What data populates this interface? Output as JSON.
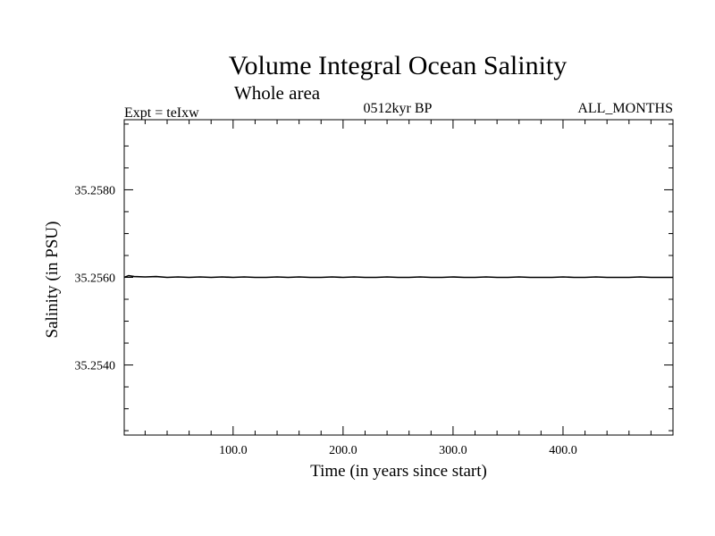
{
  "chart_data": {
    "type": "line",
    "title": "Volume Integral Ocean Salinity",
    "subtitle": "Whole area",
    "left_label": "Expt = teIxw",
    "center_label": "0512kyr BP",
    "right_label": "ALL_MONTHS",
    "xlabel": "Time (in years since start)",
    "ylabel": "Salinity (in PSU)",
    "xlim": [
      1,
      500
    ],
    "ylim": [
      35.2524,
      35.2596
    ],
    "xticks": [
      100,
      200,
      300,
      400
    ],
    "xtick_labels": [
      "100.0",
      "200.0",
      "300.0",
      "400.0"
    ],
    "yticks": [
      35.254,
      35.256,
      35.258
    ],
    "ytick_labels": [
      "35.2540",
      "35.2560",
      "35.2580"
    ],
    "grid": false,
    "series": [
      {
        "x": [
          1,
          5,
          10,
          20,
          30,
          40,
          50,
          60,
          70,
          80,
          90,
          100,
          110,
          120,
          130,
          140,
          150,
          160,
          170,
          180,
          190,
          200,
          210,
          220,
          230,
          240,
          250,
          260,
          270,
          280,
          290,
          300,
          310,
          320,
          330,
          340,
          350,
          360,
          370,
          380,
          390,
          400,
          410,
          420,
          430,
          440,
          450,
          460,
          470,
          480,
          490,
          500
        ],
        "values": [
          35.256,
          35.25604,
          35.25602,
          35.25601,
          35.25602,
          35.256,
          35.25601,
          35.256,
          35.25601,
          35.256,
          35.25601,
          35.256,
          35.25601,
          35.256,
          35.256,
          35.25601,
          35.256,
          35.25601,
          35.256,
          35.256,
          35.25601,
          35.256,
          35.25601,
          35.256,
          35.256,
          35.25601,
          35.256,
          35.256,
          35.25601,
          35.256,
          35.256,
          35.25601,
          35.256,
          35.256,
          35.25601,
          35.256,
          35.256,
          35.25601,
          35.256,
          35.256,
          35.256,
          35.25601,
          35.256,
          35.256,
          35.25601,
          35.256,
          35.256,
          35.256,
          35.25601,
          35.256,
          35.256,
          35.256
        ]
      }
    ]
  }
}
